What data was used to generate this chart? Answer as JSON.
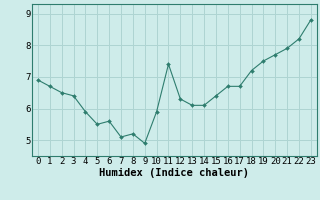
{
  "x": [
    0,
    1,
    2,
    3,
    4,
    5,
    6,
    7,
    8,
    9,
    10,
    11,
    12,
    13,
    14,
    15,
    16,
    17,
    18,
    19,
    20,
    21,
    22,
    23
  ],
  "y": [
    6.9,
    6.7,
    6.5,
    6.4,
    5.9,
    5.5,
    5.6,
    5.1,
    5.2,
    4.9,
    5.9,
    7.4,
    6.3,
    6.1,
    6.1,
    6.4,
    6.7,
    6.7,
    7.2,
    7.5,
    7.7,
    7.9,
    8.2,
    8.8
  ],
  "line_color": "#2e7d6e",
  "marker": "D",
  "marker_size": 2.0,
  "bg_color": "#ceecea",
  "grid_color": "#aed4d2",
  "xlabel": "Humidex (Indice chaleur)",
  "xlabel_fontsize": 7.5,
  "xlabel_weight": "bold",
  "yticks": [
    5,
    6,
    7,
    8,
    9
  ],
  "ylim": [
    4.5,
    9.3
  ],
  "xlim": [
    -0.5,
    23.5
  ],
  "tick_fontsize": 6.5
}
